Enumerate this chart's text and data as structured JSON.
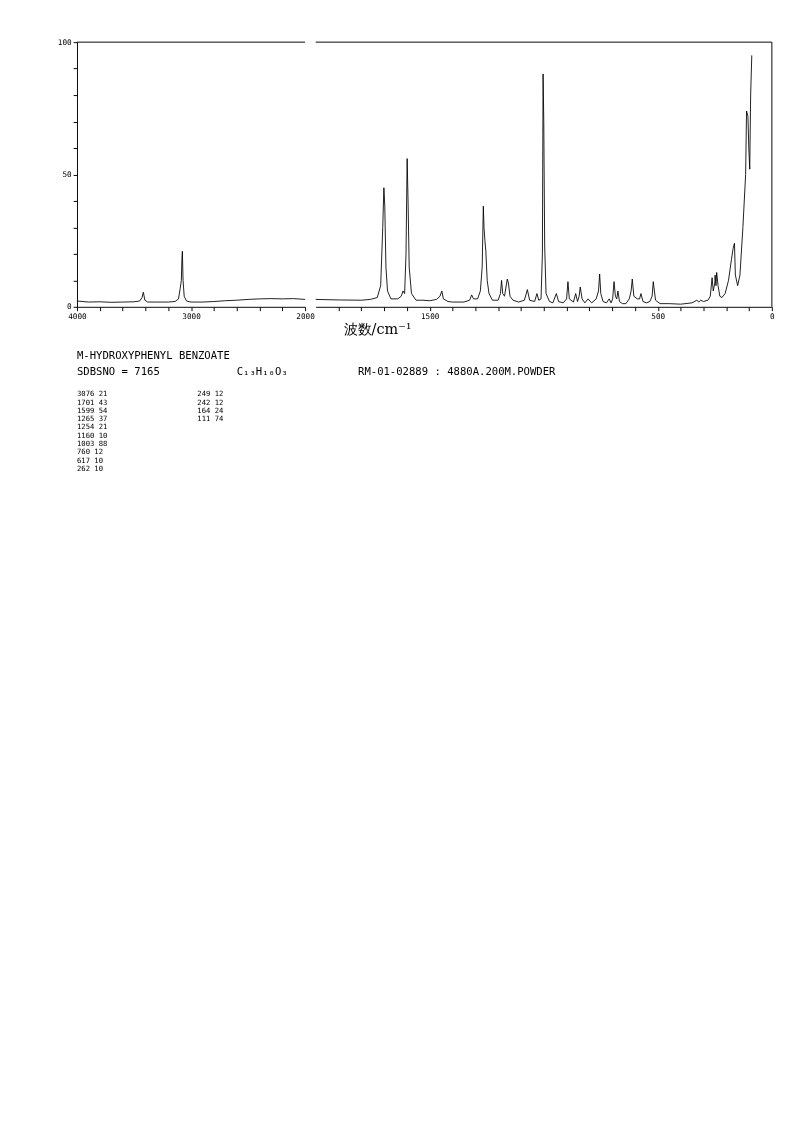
{
  "chart_data": [
    {
      "type": "line",
      "xlim": [
        4000,
        2000
      ],
      "ylim": [
        0,
        100
      ],
      "xticks": [
        4000,
        {
          "value": 3800,
          "label": null
        },
        {
          "value": 3600,
          "label": null
        },
        {
          "value": 3400,
          "label": null
        },
        {
          "value": 3200,
          "label": null
        },
        3000,
        {
          "value": 2800,
          "label": null
        },
        {
          "value": 2600,
          "label": null
        },
        {
          "value": 2400,
          "label": null
        },
        {
          "value": 2200,
          "label": null
        },
        2000
      ],
      "yticks": [
        0,
        {
          "value": 10,
          "label": null
        },
        {
          "value": 20,
          "label": null
        },
        {
          "value": 30,
          "label": null
        },
        {
          "value": 40,
          "label": null
        },
        50,
        {
          "value": 60,
          "label": null
        },
        {
          "value": 70,
          "label": null
        },
        {
          "value": 80,
          "label": null
        },
        {
          "value": 90,
          "label": null
        },
        100
      ],
      "grid": false,
      "series": [
        {
          "color": "#000000",
          "x": [
            4000,
            3900,
            3800,
            3700,
            3600,
            3500,
            3450,
            3430,
            3418,
            3405,
            3380,
            3300,
            3200,
            3140,
            3110,
            3095,
            3085,
            3080,
            3076,
            3070,
            3060,
            3040,
            3000,
            2900,
            2800,
            2700,
            2600,
            2500,
            2400,
            2300,
            2200,
            2100,
            2000
          ],
          "values": [
            2.2,
            1.8,
            1.9,
            1.7,
            1.8,
            1.9,
            2.2,
            3.5,
            5.5,
            2.5,
            1.8,
            1.8,
            1.8,
            2,
            3,
            7,
            10,
            18,
            21,
            10,
            4,
            2.2,
            1.8,
            1.8,
            2,
            2.3,
            2.5,
            2.8,
            3,
            3.1,
            3,
            3.1,
            2.8
          ]
        }
      ],
      "annotations": [
        "M-HYDROXYPHENYL BENZOATE",
        "SDBSNO = 7165",
        "C₁₃H₁₀O₃",
        "RM-01-02889 : 4880A.200M.POWDER",
        "3076 21",
        "1701 43",
        "1599 54",
        "1265 37",
        "1254 21",
        "1160 10",
        "1003 88",
        "760 12",
        "617 10",
        "262 10",
        "249 12",
        "242 12",
        "164 24",
        "111 74"
      ]
    },
    {
      "type": "line",
      "xlabel": "波数/cm⁻¹",
      "tick_labels": "x",
      "xlim": [
        2000,
        0
      ],
      "ylim": [
        0,
        100
      ],
      "xticks": [
        {
          "value": 1900,
          "label": null
        },
        {
          "value": 1800,
          "label": null
        },
        {
          "value": 1700,
          "label": null
        },
        {
          "value": 1600,
          "label": null
        },
        1500,
        {
          "value": 1400,
          "label": null
        },
        {
          "value": 1300,
          "label": null
        },
        {
          "value": 1200,
          "label": null
        },
        {
          "value": 1100,
          "label": null
        },
        {
          "value": 1000,
          "label": null
        },
        {
          "value": 900,
          "label": null
        },
        {
          "value": 800,
          "label": null
        },
        {
          "value": 700,
          "label": null
        },
        {
          "value": 600,
          "label": null
        },
        500,
        {
          "value": 400,
          "label": null
        },
        {
          "value": 300,
          "label": null
        },
        {
          "value": 200,
          "label": null
        },
        {
          "value": 100,
          "label": null
        },
        0
      ],
      "grid": false,
      "series": [
        {
          "color": "#000000",
          "x": [
            2000,
            1900,
            1800,
            1760,
            1730,
            1715,
            1706,
            1701,
            1697,
            1692,
            1685,
            1670,
            1640,
            1625,
            1617,
            1610,
            1604,
            1599,
            1595,
            1590,
            1580,
            1560,
            1530,
            1500,
            1470,
            1455,
            1447,
            1440,
            1420,
            1400,
            1350,
            1325,
            1316,
            1308,
            1290,
            1278,
            1270,
            1265,
            1262,
            1258,
            1254,
            1248,
            1240,
            1225,
            1200,
            1190,
            1185,
            1180,
            1172,
            1160,
            1155,
            1148,
            1135,
            1110,
            1085,
            1072,
            1062,
            1040,
            1030,
            1022,
            1012,
            1006,
            1003,
            1000,
            996,
            990,
            975,
            960,
            945,
            935,
            915,
            900,
            894,
            888,
            870,
            860,
            852,
            845,
            840,
            832,
            820,
            806,
            790,
            770,
            760,
            755,
            750,
            740,
            725,
            713,
            705,
            698,
            692,
            686,
            680,
            675,
            668,
            655,
            640,
            625,
            617,
            612,
            605,
            590,
            580,
            574,
            565,
            550,
            535,
            525,
            520,
            510,
            490,
            450,
            400,
            350,
            329,
            320,
            312,
            300,
            280,
            270,
            262,
            257,
            250,
            249,
            245,
            242,
            236,
            228,
            219,
            205,
            190,
            177,
            170,
            164,
            160,
            150,
            140,
            127,
            115,
            111,
            105,
            101,
            97,
            93,
            88
          ],
          "values": [
            2.8,
            2.6,
            2.5,
            2.8,
            3.5,
            8,
            30,
            45,
            38,
            15,
            6,
            3,
            3,
            4,
            6,
            5,
            20,
            56,
            40,
            15,
            5,
            2.5,
            2.5,
            2.3,
            2.8,
            4,
            6,
            3,
            2,
            1.8,
            1.8,
            2.5,
            4.5,
            3,
            3,
            6,
            15,
            38,
            30,
            25,
            21,
            10,
            5,
            2.5,
            2.5,
            5,
            10,
            5,
            4,
            10.5,
            9,
            4,
            2.5,
            1.8,
            2.5,
            6.5,
            2.5,
            2,
            5,
            2.5,
            3,
            20,
            88,
            70,
            23,
            5,
            2,
            1.5,
            5,
            2,
            1.5,
            3,
            9.5,
            3,
            1.8,
            5,
            2,
            4,
            7.5,
            3,
            1.5,
            3,
            1.5,
            3,
            6,
            12.4,
            5,
            2,
            1.5,
            3,
            1.5,
            3,
            9.5,
            4,
            3,
            6,
            2,
            1.2,
            1.2,
            3,
            6,
            10.5,
            4,
            3,
            3,
            5,
            2,
            1.5,
            2,
            4,
            9.5,
            2.5,
            1.2,
            1.2,
            1,
            1.5,
            2.5,
            1.8,
            2.5,
            2,
            2.5,
            4,
            11,
            6,
            9,
            12,
            8,
            13,
            8,
            4,
            3.5,
            5,
            10,
            18,
            22,
            24,
            12,
            8,
            12,
            30,
            50,
            74,
            72,
            60,
            52,
            80,
            95
          ]
        }
      ]
    }
  ]
}
